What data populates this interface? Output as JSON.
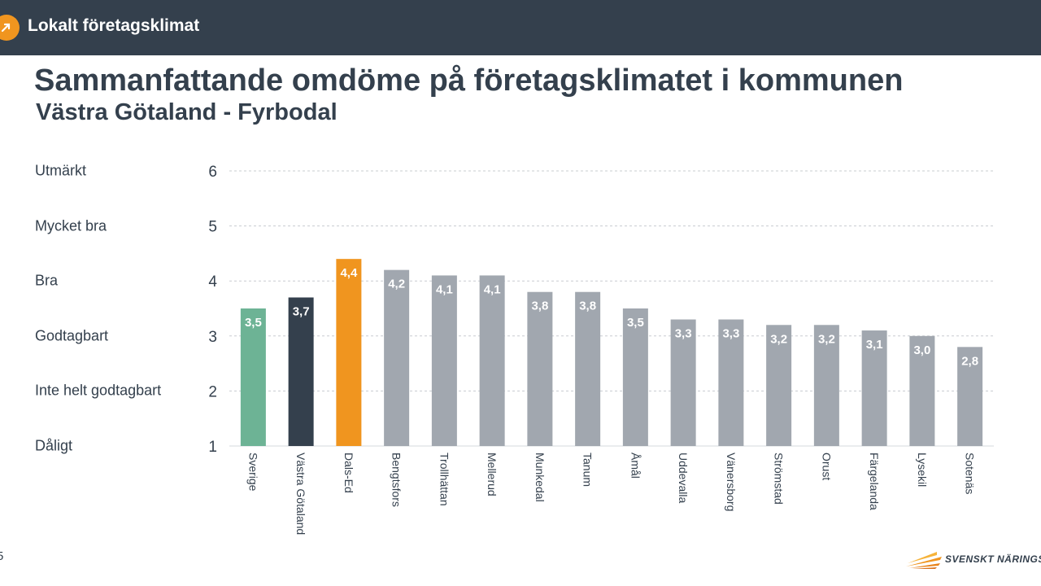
{
  "header": {
    "app_title": "Lokalt företagsklimat"
  },
  "footer": {
    "page_number": "5",
    "brand": "SVENSKT NÄRINGSLI"
  },
  "colors": {
    "header_bg": "#34404d",
    "accent_orange": "#f0951f",
    "sverige_green": "#6db395",
    "region_dark": "#34404d",
    "municipality_grey": "#a1a7af"
  },
  "chart_data": {
    "type": "bar",
    "title": "Sammanfattande omdöme på företagsklimatet i kommunen",
    "subtitle": "Västra Götaland - Fyrbodal",
    "ylim": [
      1,
      6
    ],
    "y_ticks": [
      "1",
      "2",
      "3",
      "4",
      "5",
      "6"
    ],
    "y_rating_labels": [
      "Dåligt",
      "Inte helt godtagbart",
      "Godtagbart",
      "Bra",
      "Mycket bra",
      "Utmärkt"
    ],
    "grid": true,
    "categories": [
      "Sverige",
      "Västra Götaland",
      "Dals-Ed",
      "Bengtsfors",
      "Trollhättan",
      "Mellerud",
      "Munkedal",
      "Tanum",
      "Åmål",
      "Uddevalla",
      "Vänersborg",
      "Strömstad",
      "Orust",
      "Färgelanda",
      "Lysekil",
      "Sotenäs"
    ],
    "values": [
      3.5,
      3.7,
      4.4,
      4.2,
      4.1,
      4.1,
      3.8,
      3.8,
      3.5,
      3.3,
      3.3,
      3.2,
      3.2,
      3.1,
      3.0,
      2.8
    ],
    "value_labels": [
      "3,5",
      "3,7",
      "4,4",
      "4,2",
      "4,1",
      "4,1",
      "3,8",
      "3,8",
      "3,5",
      "3,3",
      "3,3",
      "3,2",
      "3,2",
      "3,1",
      "3,0",
      "2,8"
    ],
    "bar_colors": [
      "#6db395",
      "#34404d",
      "#f0951f",
      "#a1a7af",
      "#a1a7af",
      "#a1a7af",
      "#a1a7af",
      "#a1a7af",
      "#a1a7af",
      "#a1a7af",
      "#a1a7af",
      "#a1a7af",
      "#a1a7af",
      "#a1a7af",
      "#a1a7af",
      "#a1a7af"
    ]
  }
}
